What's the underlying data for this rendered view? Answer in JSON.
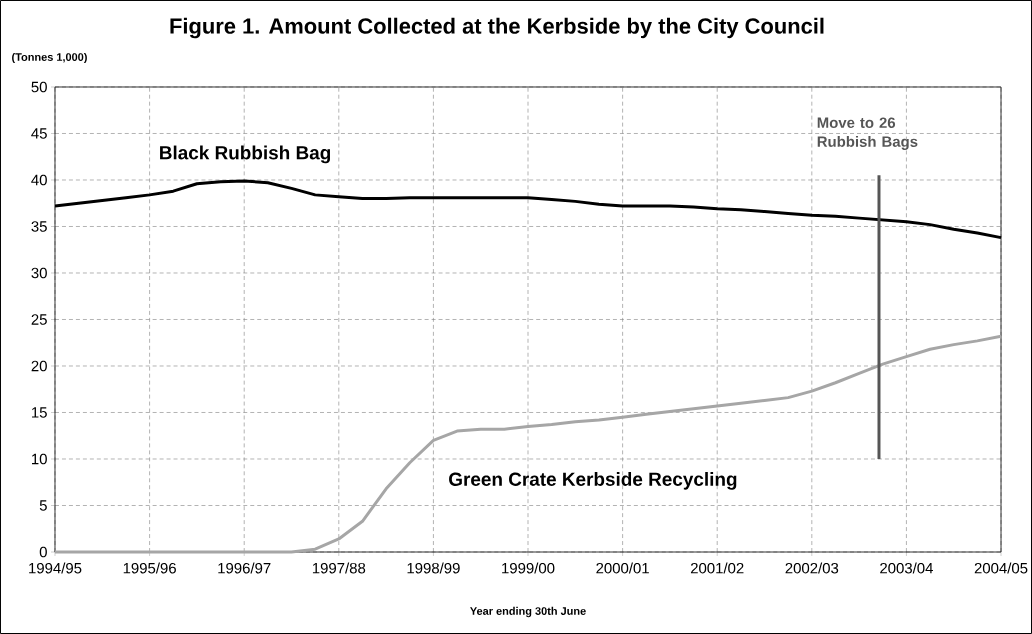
{
  "chart_data": {
    "type": "line",
    "title": "Figure 1. Amount Collected at the Kerbside by the City Council",
    "ylabel": "(Tonnes 1,000)",
    "xlabel": "Year ending 30th June",
    "categories": [
      "1994/95",
      null,
      null,
      null,
      "1995/96",
      null,
      null,
      null,
      "1996/97",
      null,
      null,
      null,
      "1997/88",
      null,
      null,
      null,
      "1998/99",
      null,
      null,
      null,
      "1999/00",
      null,
      null,
      null,
      "2000/01",
      null,
      null,
      null,
      "2001/02",
      null,
      null,
      null,
      "2002/03",
      null,
      null,
      null,
      "2003/04",
      null,
      null,
      null,
      "2004/05"
    ],
    "ylim": [
      0,
      50
    ],
    "yticks": [
      0,
      5,
      10,
      15,
      20,
      25,
      30,
      35,
      40,
      45,
      50
    ],
    "grid": true,
    "legend": false,
    "series": [
      {
        "name": "Black Rubbish Bag",
        "color": "#000000",
        "values": [
          37.2,
          37.5,
          37.8,
          38.1,
          38.4,
          38.8,
          39.6,
          39.8,
          39.9,
          39.7,
          39.1,
          38.4,
          38.2,
          38.0,
          38.0,
          38.1,
          38.1,
          38.1,
          38.1,
          38.1,
          38.1,
          37.9,
          37.7,
          37.4,
          37.2,
          37.2,
          37.2,
          37.1,
          36.9,
          36.8,
          36.6,
          36.4,
          36.2,
          36.1,
          35.9,
          35.7,
          35.5,
          35.2,
          34.7,
          34.3,
          33.8
        ]
      },
      {
        "name": "Green Crate Kerbside Recycling",
        "color": "#a6a6a6",
        "values": [
          0,
          0,
          0,
          0,
          0,
          0,
          0,
          0,
          0,
          0,
          0,
          0.3,
          1.4,
          3.3,
          6.8,
          9.6,
          12.0,
          13.0,
          13.2,
          13.2,
          13.5,
          13.7,
          14.0,
          14.2,
          14.5,
          14.8,
          15.1,
          15.4,
          15.7,
          16.0,
          16.3,
          16.6,
          17.3,
          18.2,
          19.2,
          20.2,
          21.0,
          21.8,
          22.3,
          22.7,
          23.2
        ]
      }
    ],
    "annotations": [
      "Move to 26 Rubbish Bags"
    ]
  }
}
